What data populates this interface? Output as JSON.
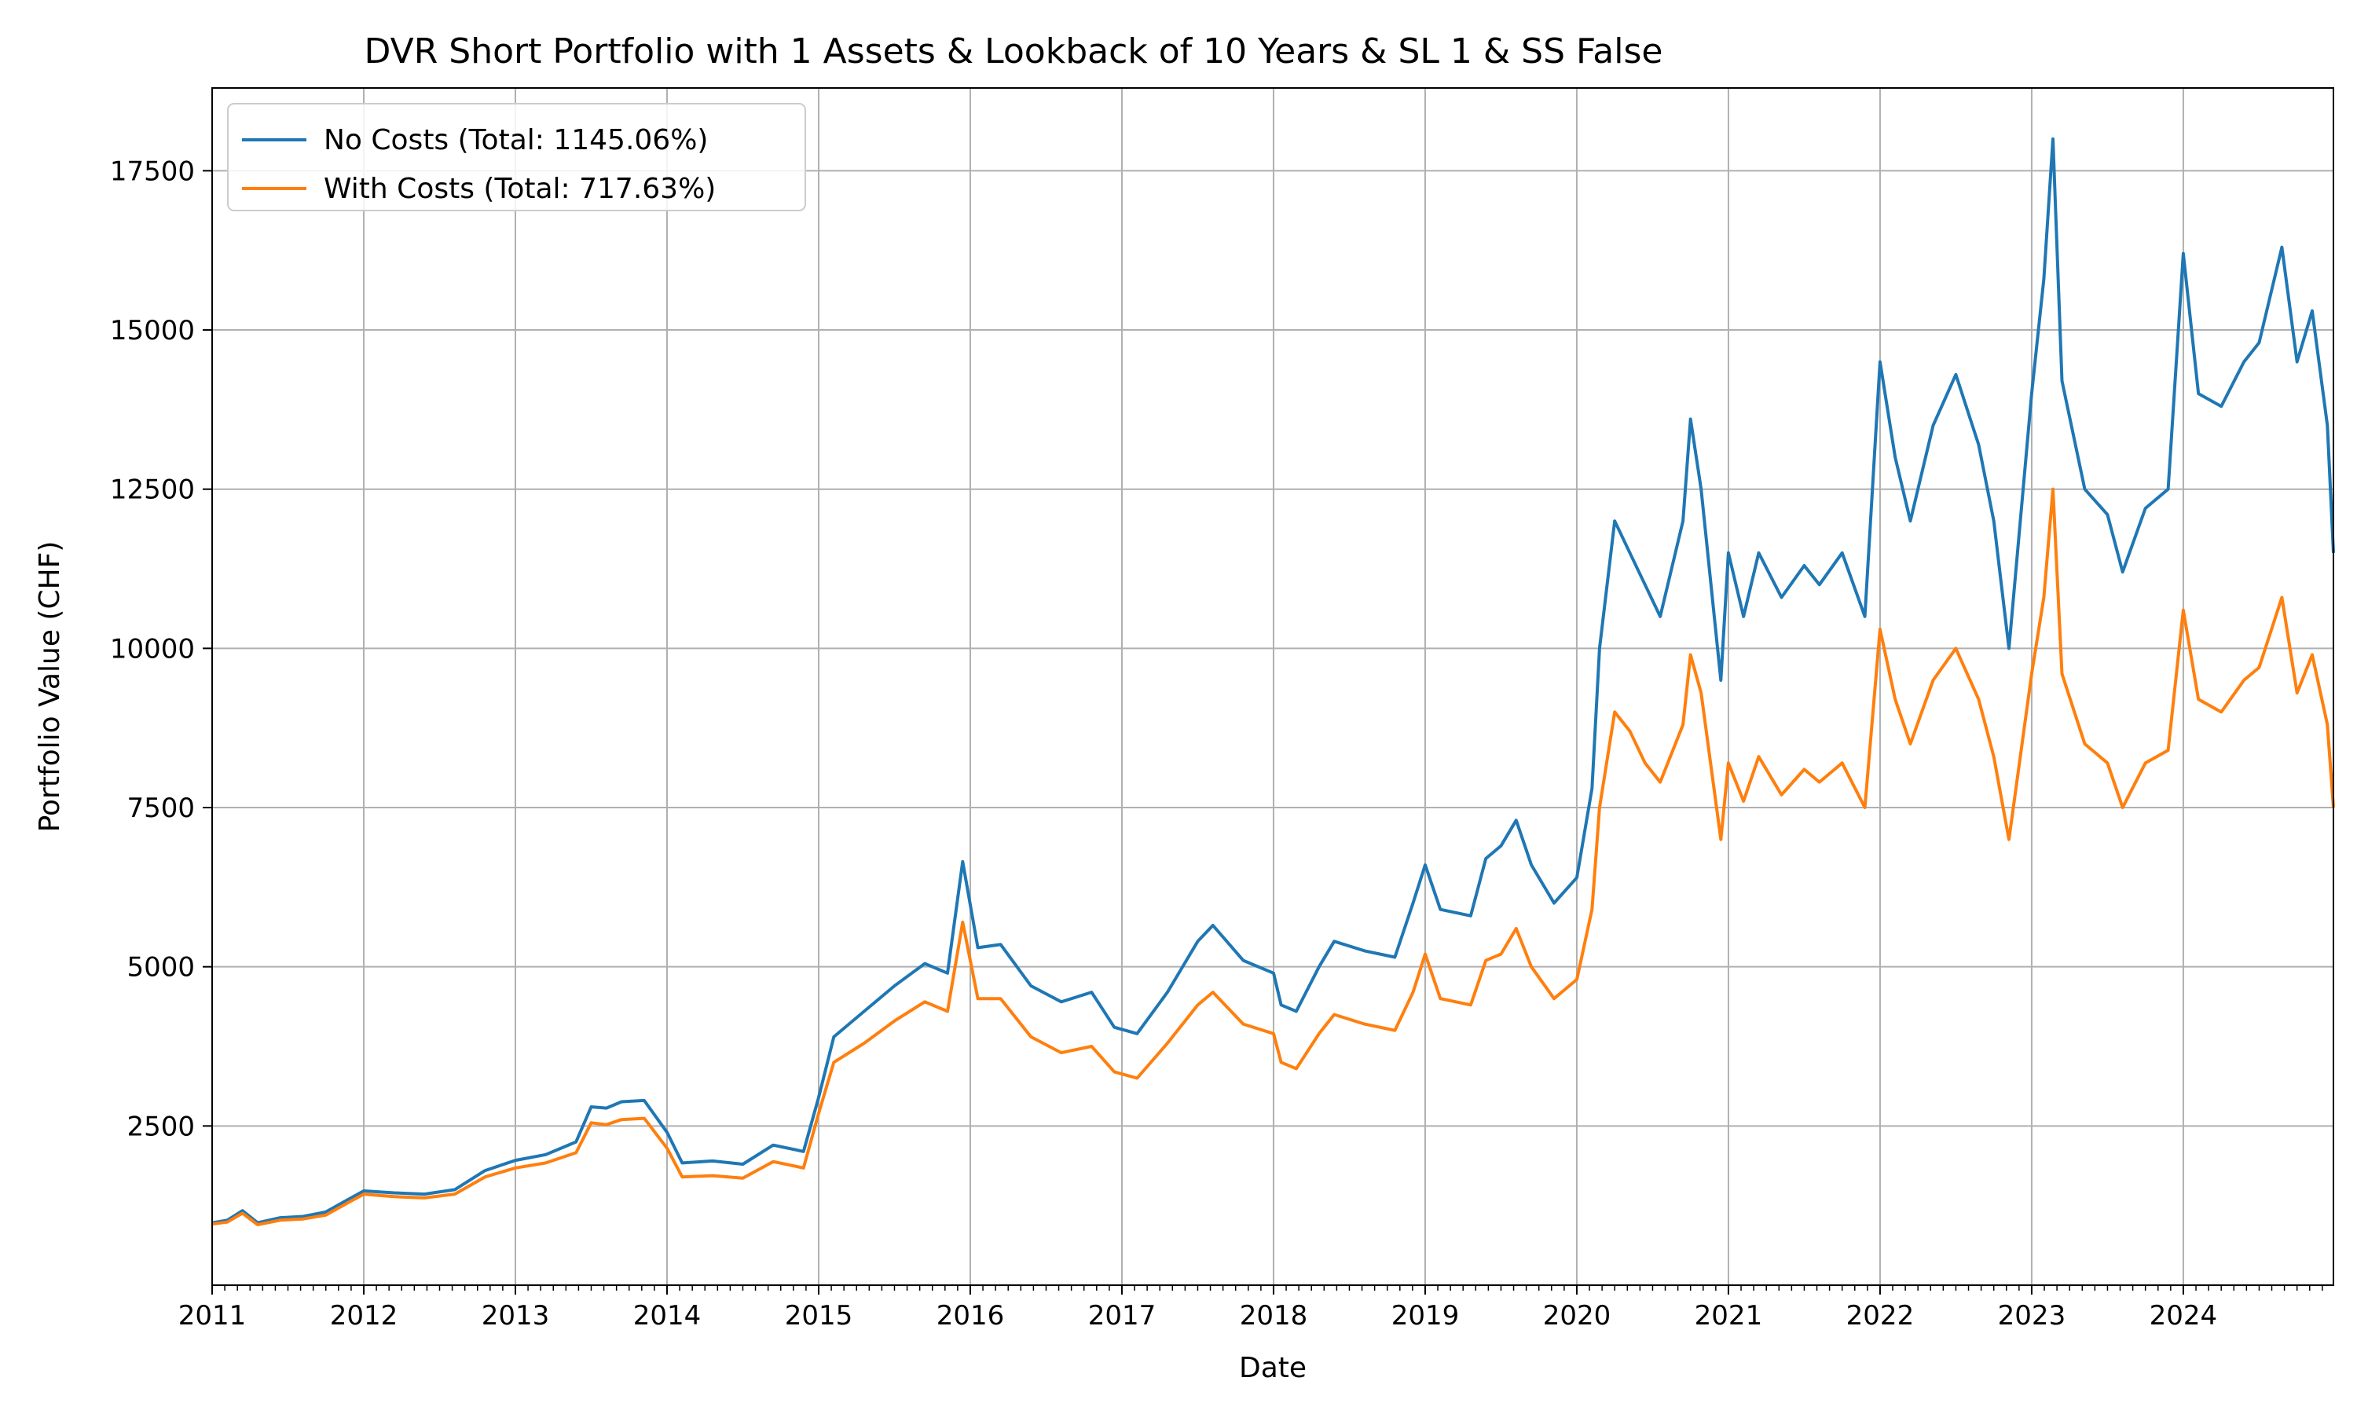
{
  "chart_data": {
    "type": "line",
    "title": "DVR Short Portfolio with 1 Assets & Lookback of 10 Years & SL 1 & SS False",
    "xlabel": "Date",
    "ylabel": "Portfolio Value (CHF)",
    "xlim": [
      2011.0,
      2024.99
    ],
    "ylim": [
      0,
      18800
    ],
    "x_ticks": [
      "2011",
      "2012",
      "2013",
      "2014",
      "2015",
      "2016",
      "2017",
      "2018",
      "2019",
      "2020",
      "2021",
      "2022",
      "2023",
      "2024"
    ],
    "y_ticks": [
      "2500",
      "5000",
      "7500",
      "10000",
      "12500",
      "15000",
      "17500"
    ],
    "grid": true,
    "legend_position": "top-left",
    "colors": {
      "no_costs": "#1f77b4",
      "with_costs": "#ff7f0e"
    },
    "series": [
      {
        "name": "No Costs (Total: 1145.06%)",
        "points": [
          [
            2011.0,
            980
          ],
          [
            2011.1,
            1020
          ],
          [
            2011.2,
            1170
          ],
          [
            2011.3,
            980
          ],
          [
            2011.45,
            1060
          ],
          [
            2011.6,
            1080
          ],
          [
            2011.75,
            1150
          ],
          [
            2011.9,
            1350
          ],
          [
            2012.0,
            1480
          ],
          [
            2012.2,
            1450
          ],
          [
            2012.4,
            1430
          ],
          [
            2012.6,
            1500
          ],
          [
            2012.8,
            1800
          ],
          [
            2013.0,
            1960
          ],
          [
            2013.2,
            2050
          ],
          [
            2013.4,
            2250
          ],
          [
            2013.5,
            2800
          ],
          [
            2013.6,
            2780
          ],
          [
            2013.7,
            2880
          ],
          [
            2013.85,
            2900
          ],
          [
            2014.0,
            2400
          ],
          [
            2014.1,
            1920
          ],
          [
            2014.3,
            1950
          ],
          [
            2014.5,
            1900
          ],
          [
            2014.7,
            2200
          ],
          [
            2014.9,
            2100
          ],
          [
            2015.0,
            2950
          ],
          [
            2015.1,
            3900
          ],
          [
            2015.3,
            4300
          ],
          [
            2015.5,
            4700
          ],
          [
            2015.7,
            5050
          ],
          [
            2015.85,
            4900
          ],
          [
            2015.95,
            6650
          ],
          [
            2016.05,
            5300
          ],
          [
            2016.2,
            5350
          ],
          [
            2016.4,
            4700
          ],
          [
            2016.6,
            4450
          ],
          [
            2016.8,
            4600
          ],
          [
            2016.95,
            4050
          ],
          [
            2017.1,
            3950
          ],
          [
            2017.3,
            4600
          ],
          [
            2017.5,
            5400
          ],
          [
            2017.6,
            5650
          ],
          [
            2017.8,
            5100
          ],
          [
            2018.0,
            4900
          ],
          [
            2018.05,
            4400
          ],
          [
            2018.15,
            4300
          ],
          [
            2018.3,
            5000
          ],
          [
            2018.4,
            5400
          ],
          [
            2018.6,
            5250
          ],
          [
            2018.8,
            5150
          ],
          [
            2018.92,
            6000
          ],
          [
            2019.0,
            6600
          ],
          [
            2019.1,
            5900
          ],
          [
            2019.3,
            5800
          ],
          [
            2019.4,
            6700
          ],
          [
            2019.5,
            6900
          ],
          [
            2019.6,
            7300
          ],
          [
            2019.7,
            6600
          ],
          [
            2019.85,
            6000
          ],
          [
            2020.0,
            6400
          ],
          [
            2020.1,
            7800
          ],
          [
            2020.15,
            10000
          ],
          [
            2020.25,
            12000
          ],
          [
            2020.35,
            11500
          ],
          [
            2020.45,
            11000
          ],
          [
            2020.55,
            10500
          ],
          [
            2020.7,
            12000
          ],
          [
            2020.75,
            13600
          ],
          [
            2020.82,
            12500
          ],
          [
            2020.95,
            9500
          ],
          [
            2021.0,
            11500
          ],
          [
            2021.1,
            10500
          ],
          [
            2021.2,
            11500
          ],
          [
            2021.35,
            10800
          ],
          [
            2021.5,
            11300
          ],
          [
            2021.6,
            11000
          ],
          [
            2021.75,
            11500
          ],
          [
            2021.9,
            10500
          ],
          [
            2022.0,
            14500
          ],
          [
            2022.1,
            13000
          ],
          [
            2022.2,
            12000
          ],
          [
            2022.35,
            13500
          ],
          [
            2022.5,
            14300
          ],
          [
            2022.65,
            13200
          ],
          [
            2022.75,
            12000
          ],
          [
            2022.85,
            10000
          ],
          [
            2023.0,
            14000
          ],
          [
            2023.08,
            15800
          ],
          [
            2023.14,
            18000
          ],
          [
            2023.2,
            14200
          ],
          [
            2023.35,
            12500
          ],
          [
            2023.5,
            12100
          ],
          [
            2023.6,
            11200
          ],
          [
            2023.75,
            12200
          ],
          [
            2023.9,
            12500
          ],
          [
            2024.0,
            16200
          ],
          [
            2024.1,
            14000
          ],
          [
            2024.25,
            13800
          ],
          [
            2024.4,
            14500
          ],
          [
            2024.5,
            14800
          ],
          [
            2024.65,
            16300
          ],
          [
            2024.75,
            14500
          ],
          [
            2024.85,
            15300
          ],
          [
            2024.95,
            13500
          ],
          [
            2024.99,
            11500
          ]
        ]
      },
      {
        "name": "With Costs (Total: 717.63%)",
        "points": [
          [
            2011.0,
            960
          ],
          [
            2011.1,
            990
          ],
          [
            2011.2,
            1130
          ],
          [
            2011.3,
            950
          ],
          [
            2011.45,
            1020
          ],
          [
            2011.6,
            1040
          ],
          [
            2011.75,
            1100
          ],
          [
            2011.9,
            1300
          ],
          [
            2012.0,
            1430
          ],
          [
            2012.2,
            1390
          ],
          [
            2012.4,
            1370
          ],
          [
            2012.6,
            1430
          ],
          [
            2012.8,
            1700
          ],
          [
            2013.0,
            1840
          ],
          [
            2013.2,
            1920
          ],
          [
            2013.4,
            2080
          ],
          [
            2013.5,
            2550
          ],
          [
            2013.6,
            2520
          ],
          [
            2013.7,
            2600
          ],
          [
            2013.85,
            2620
          ],
          [
            2014.0,
            2150
          ],
          [
            2014.1,
            1700
          ],
          [
            2014.3,
            1720
          ],
          [
            2014.5,
            1680
          ],
          [
            2014.7,
            1940
          ],
          [
            2014.9,
            1840
          ],
          [
            2015.0,
            2700
          ],
          [
            2015.1,
            3500
          ],
          [
            2015.3,
            3800
          ],
          [
            2015.5,
            4150
          ],
          [
            2015.7,
            4450
          ],
          [
            2015.85,
            4300
          ],
          [
            2015.95,
            5700
          ],
          [
            2016.05,
            4500
          ],
          [
            2016.2,
            4500
          ],
          [
            2016.4,
            3900
          ],
          [
            2016.6,
            3650
          ],
          [
            2016.8,
            3750
          ],
          [
            2016.95,
            3350
          ],
          [
            2017.1,
            3250
          ],
          [
            2017.3,
            3800
          ],
          [
            2017.5,
            4400
          ],
          [
            2017.6,
            4600
          ],
          [
            2017.8,
            4100
          ],
          [
            2018.0,
            3950
          ],
          [
            2018.05,
            3500
          ],
          [
            2018.15,
            3400
          ],
          [
            2018.3,
            3950
          ],
          [
            2018.4,
            4250
          ],
          [
            2018.6,
            4100
          ],
          [
            2018.8,
            4000
          ],
          [
            2018.92,
            4600
          ],
          [
            2019.0,
            5200
          ],
          [
            2019.1,
            4500
          ],
          [
            2019.3,
            4400
          ],
          [
            2019.4,
            5100
          ],
          [
            2019.5,
            5200
          ],
          [
            2019.6,
            5600
          ],
          [
            2019.7,
            5000
          ],
          [
            2019.85,
            4500
          ],
          [
            2020.0,
            4800
          ],
          [
            2020.1,
            5900
          ],
          [
            2020.15,
            7500
          ],
          [
            2020.25,
            9000
          ],
          [
            2020.35,
            8700
          ],
          [
            2020.45,
            8200
          ],
          [
            2020.55,
            7900
          ],
          [
            2020.7,
            8800
          ],
          [
            2020.75,
            9900
          ],
          [
            2020.82,
            9300
          ],
          [
            2020.95,
            7000
          ],
          [
            2021.0,
            8200
          ],
          [
            2021.1,
            7600
          ],
          [
            2021.2,
            8300
          ],
          [
            2021.35,
            7700
          ],
          [
            2021.5,
            8100
          ],
          [
            2021.6,
            7900
          ],
          [
            2021.75,
            8200
          ],
          [
            2021.9,
            7500
          ],
          [
            2022.0,
            10300
          ],
          [
            2022.1,
            9200
          ],
          [
            2022.2,
            8500
          ],
          [
            2022.35,
            9500
          ],
          [
            2022.5,
            10000
          ],
          [
            2022.65,
            9200
          ],
          [
            2022.75,
            8300
          ],
          [
            2022.85,
            7000
          ],
          [
            2023.0,
            9600
          ],
          [
            2023.08,
            10800
          ],
          [
            2023.14,
            12500
          ],
          [
            2023.2,
            9600
          ],
          [
            2023.35,
            8500
          ],
          [
            2023.5,
            8200
          ],
          [
            2023.6,
            7500
          ],
          [
            2023.75,
            8200
          ],
          [
            2023.9,
            8400
          ],
          [
            2024.0,
            10600
          ],
          [
            2024.1,
            9200
          ],
          [
            2024.25,
            9000
          ],
          [
            2024.4,
            9500
          ],
          [
            2024.5,
            9700
          ],
          [
            2024.65,
            10800
          ],
          [
            2024.75,
            9300
          ],
          [
            2024.85,
            9900
          ],
          [
            2024.95,
            8800
          ],
          [
            2024.99,
            7500
          ]
        ]
      }
    ]
  }
}
